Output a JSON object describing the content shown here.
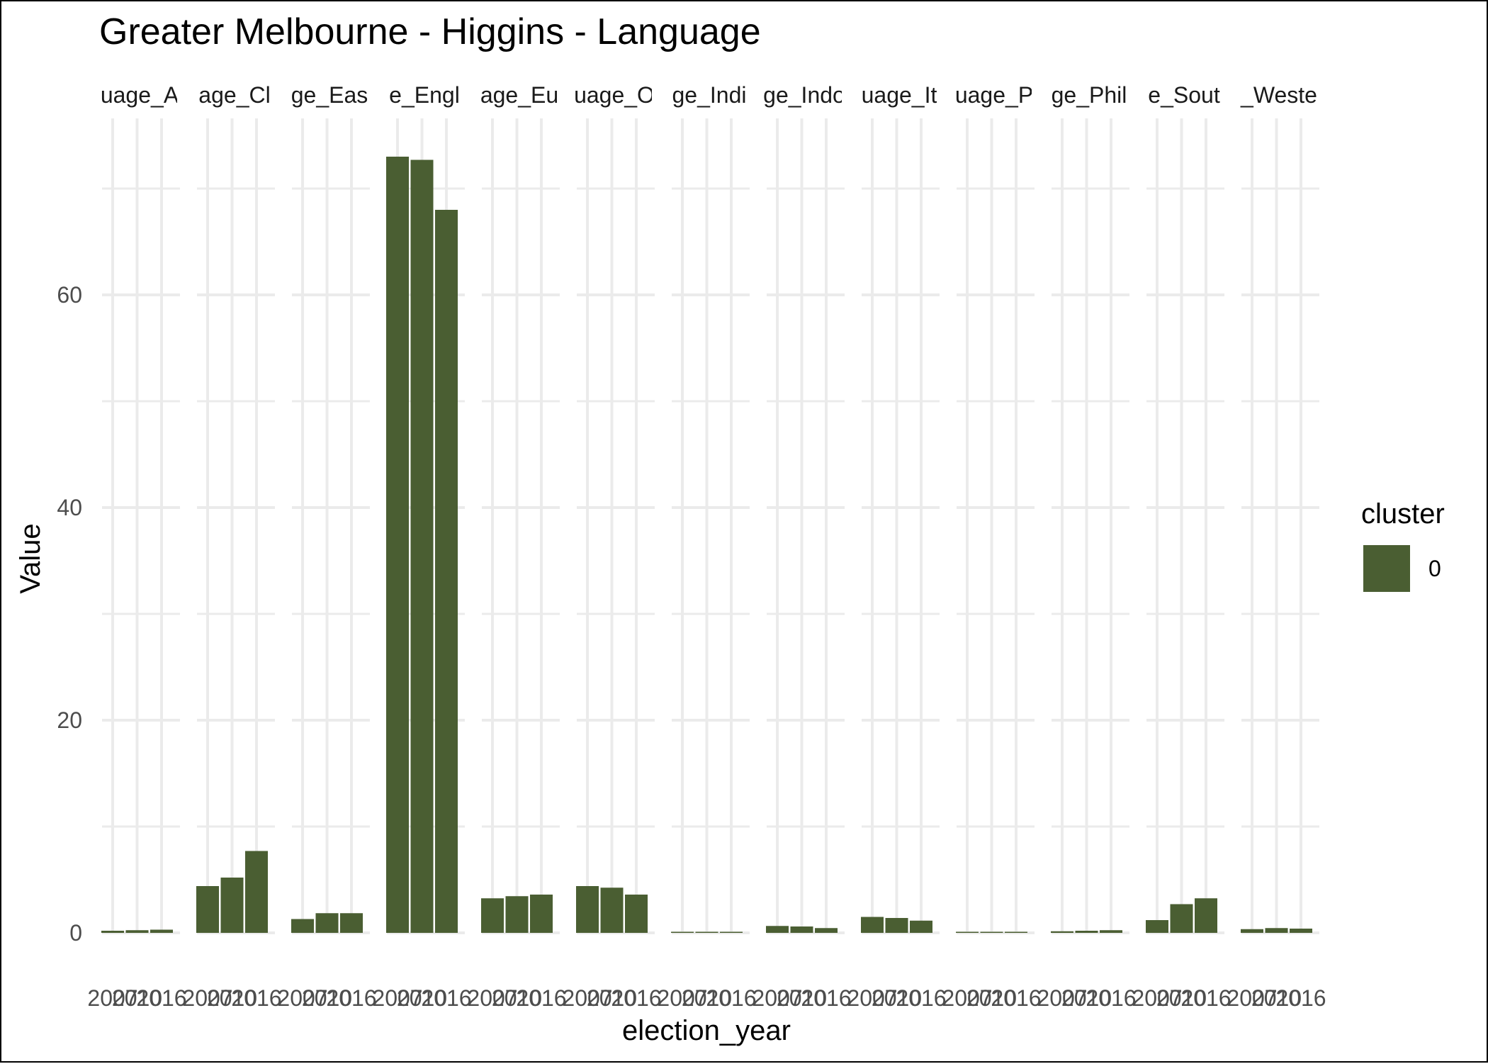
{
  "chart_data": {
    "type": "bar",
    "title": "Greater Melbourne - Higgins - Language",
    "xlabel": "election_year",
    "ylabel": "Value",
    "ylim": [
      0,
      76
    ],
    "yticks": [
      0,
      20,
      40,
      60
    ],
    "ytick_labels": [
      "0",
      "20",
      "40",
      "60"
    ],
    "grid": true,
    "x_tick_labels": [
      "2007",
      "2010",
      "2016"
    ],
    "panels": [
      {
        "strip": "uage_A",
        "values": [
          0.2,
          0.25,
          0.3
        ]
      },
      {
        "strip": "age_Cl",
        "values": [
          4.4,
          5.2,
          7.7
        ]
      },
      {
        "strip": "ge_Eas",
        "values": [
          1.3,
          1.85,
          1.85
        ]
      },
      {
        "strip": "e_Engl",
        "values": [
          73.0,
          72.7,
          68.0
        ]
      },
      {
        "strip": "age_Eu",
        "values": [
          3.25,
          3.45,
          3.6
        ]
      },
      {
        "strip": "uage_O",
        "values": [
          4.4,
          4.25,
          3.6
        ]
      },
      {
        "strip": "ge_Indi",
        "values": [
          0.03,
          0.03,
          0.03
        ]
      },
      {
        "strip": "ge_Indo",
        "values": [
          0.65,
          0.6,
          0.45
        ]
      },
      {
        "strip": "uage_It",
        "values": [
          1.5,
          1.4,
          1.15
        ]
      },
      {
        "strip": "uage_P",
        "values": [
          0.05,
          0.05,
          0.05
        ]
      },
      {
        "strip": "ge_Phil",
        "values": [
          0.15,
          0.2,
          0.25
        ]
      },
      {
        "strip": "e_Sout",
        "values": [
          1.2,
          2.7,
          3.25
        ]
      },
      {
        "strip": "_Weste",
        "values": [
          0.35,
          0.45,
          0.4
        ]
      }
    ],
    "legend": {
      "title": "cluster",
      "entries": [
        "0"
      ],
      "position": "right"
    },
    "colors": {
      "bar": "#4a5e32",
      "grid": "#ebebeb",
      "background": "#ffffff"
    }
  }
}
